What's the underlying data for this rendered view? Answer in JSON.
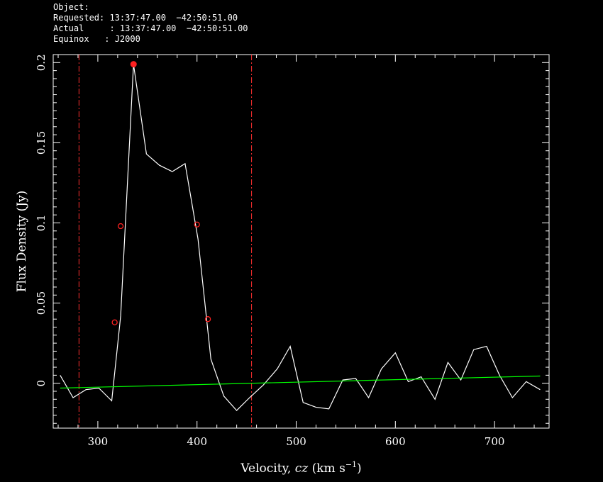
{
  "header": {
    "object": "Object:",
    "requested": "Requested: 13:37:47.00  −42:50:51.00",
    "actual": "Actual     : 13:37:47.00  −42:50:51.00",
    "equinox": "Equinox   : J2000"
  },
  "chart_data": {
    "type": "line",
    "xlabel_parts": [
      "Velocity, ",
      "cz",
      " (km s",
      "−1",
      ")"
    ],
    "ylabel": "Flux Density (Jy)",
    "xlim": [
      255,
      755
    ],
    "ylim": [
      -0.028,
      0.205
    ],
    "x_ticks": [
      300,
      400,
      500,
      600,
      700
    ],
    "x_tick_labels": [
      "300",
      "400",
      "500",
      "600",
      "700"
    ],
    "y_ticks": [
      0,
      0.05,
      0.1,
      0.15,
      0.2
    ],
    "y_tick_labels": [
      "0",
      "0.05",
      "0.1",
      "0.15",
      "0.2"
    ],
    "grid": false,
    "series": [
      {
        "role": "spectrum",
        "color": "#ffffff",
        "x": [
          262,
          275,
          288,
          301,
          314,
          323,
          336,
          349,
          362,
          375,
          388,
          401,
          414,
          427,
          440,
          453,
          467,
          481,
          494,
          507,
          520,
          533,
          547,
          560,
          573,
          586,
          600,
          613,
          626,
          640,
          653,
          666,
          679,
          692,
          705,
          718,
          732,
          746
        ],
        "y": [
          0.005,
          -0.009,
          -0.004,
          -0.003,
          -0.011,
          0.042,
          0.199,
          0.143,
          0.136,
          0.132,
          0.137,
          0.09,
          0.015,
          -0.008,
          -0.017,
          -0.009,
          -0.001,
          0.009,
          0.023,
          -0.012,
          -0.015,
          -0.016,
          0.002,
          0.003,
          -0.009,
          0.009,
          0.019,
          0.001,
          0.004,
          -0.01,
          0.013,
          0.002,
          0.021,
          0.023,
          0.005,
          -0.009,
          0.001,
          -0.004
        ]
      },
      {
        "role": "baseline-fit",
        "color": "#00ff00",
        "x": [
          262,
          746
        ],
        "y": [
          -0.003,
          0.0045
        ]
      }
    ],
    "markers": [
      {
        "x": 317,
        "y": 0.038,
        "filled": false
      },
      {
        "x": 323,
        "y": 0.098,
        "filled": false
      },
      {
        "x": 336,
        "y": 0.199,
        "filled": true
      },
      {
        "x": 400,
        "y": 0.099,
        "filled": false
      },
      {
        "x": 411,
        "y": 0.04,
        "filled": false
      }
    ],
    "marker_color": "#ff2020",
    "vlines": [
      {
        "x": 281,
        "color": "#ff3030",
        "style": "dash-dot"
      },
      {
        "x": 455,
        "color": "#ff3030",
        "style": "dash-dot"
      }
    ]
  }
}
